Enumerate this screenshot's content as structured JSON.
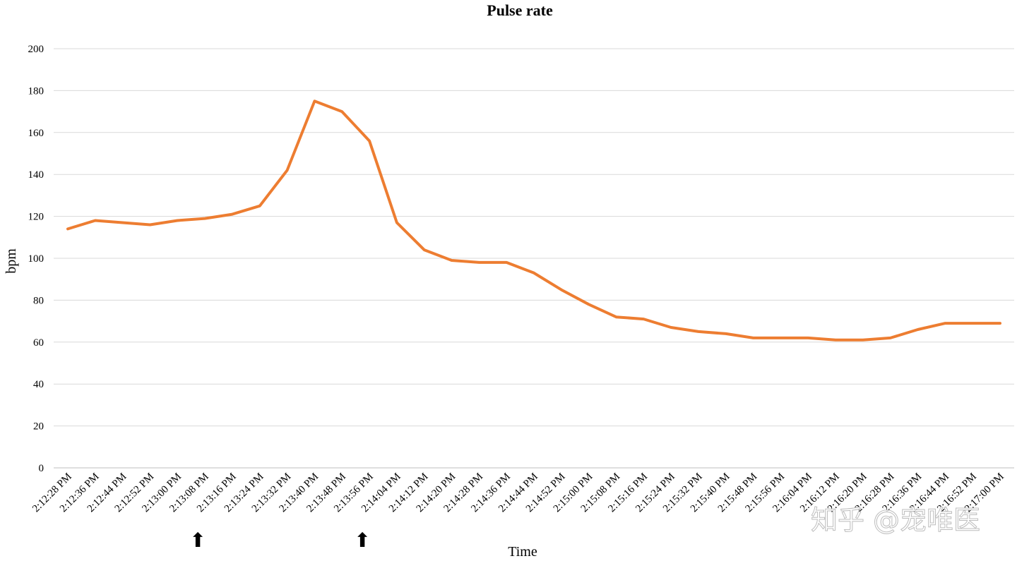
{
  "chart_data": {
    "type": "line",
    "title": "Pulse rate",
    "xlabel": "Time",
    "ylabel": "bpm",
    "ylim": [
      0,
      200
    ],
    "yticks": [
      0,
      20,
      40,
      60,
      80,
      100,
      120,
      140,
      160,
      180,
      200
    ],
    "grid": true,
    "line_color": "#ED7D31",
    "categories": [
      "2:12:28 PM",
      "2:12:36 PM",
      "2:12:44 PM",
      "2:12:52 PM",
      "2:13:00 PM",
      "2:13:08 PM",
      "2:13:16 PM",
      "2:13:24 PM",
      "2:13:32 PM",
      "2:13:40 PM",
      "2:13:48 PM",
      "2:13:56 PM",
      "2:14:04 PM",
      "2:14:12 PM",
      "2:14:20 PM",
      "2:14:28 PM",
      "2:14:36 PM",
      "2:14:44 PM",
      "2:14:52 PM",
      "2:15:00 PM",
      "2:15:08 PM",
      "2:15:16 PM",
      "2:15:24 PM",
      "2:15:32 PM",
      "2:15:40 PM",
      "2:15:48 PM",
      "2:15:56 PM",
      "2:16:04 PM",
      "2:16:12 PM",
      "2:16:20 PM",
      "2:16:28 PM",
      "2:16:36 PM",
      "2:16:44 PM",
      "2:16:52 PM",
      "2:17:00 PM"
    ],
    "values": [
      114,
      118,
      117,
      116,
      118,
      119,
      121,
      125,
      142,
      175,
      170,
      156,
      117,
      104,
      99,
      98,
      98,
      93,
      85,
      78,
      72,
      71,
      67,
      65,
      64,
      62,
      62,
      62,
      61,
      61,
      62,
      66,
      69,
      69,
      69
    ],
    "arrows": [
      {
        "category": "2:13:08 PM",
        "symbol": "⬆"
      },
      {
        "category": "2:13:56 PM",
        "symbol": "⬆"
      }
    ]
  },
  "watermark": "知乎 @宠唯医"
}
